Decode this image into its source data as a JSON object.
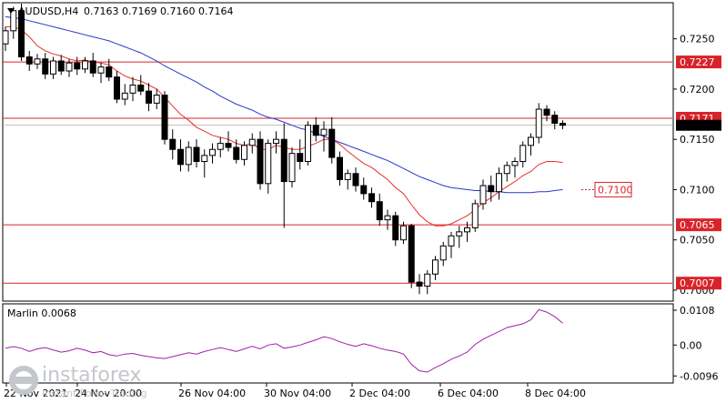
{
  "header": {
    "symbol": "AUDUSD,H4",
    "ohlc": "0.7163 0.7169 0.7160 0.7164"
  },
  "price_axis": {
    "ticks": [
      "0.7250",
      "0.7200",
      "0.7150",
      "0.7100",
      "0.7050",
      "0.7000"
    ],
    "level_labels": [
      "0.7227",
      "0.7171",
      "0.7065",
      "0.7007"
    ],
    "target_label": "0.7100",
    "current_price": 0.7164
  },
  "time_axis": {
    "labels": [
      "22 Nov 2021",
      "24 Nov 20:00",
      "26 Nov 04:00",
      "30 Nov 04:00",
      "2 Dec 04:00",
      "6 Dec 04:00",
      "8 Dec 04:00"
    ]
  },
  "indicator": {
    "name": "Marlin 0.0068",
    "ticks": [
      "0.0108",
      "0.00",
      "-0.0096"
    ]
  },
  "logo": {
    "brand": "instaforex",
    "tagline": "Instant Forex Trading"
  },
  "colors": {
    "candle_up": "#ffffff",
    "candle_down": "#000000",
    "ma_red": "#e8302a",
    "ma_blue": "#2d35c8",
    "level_line": "#d9232a",
    "marlin": "#a020a8",
    "grid": "#d9d9d9"
  },
  "chart_data": [
    {
      "type": "candlestick",
      "title": "AUDUSD,H4",
      "ylim": [
        0.699,
        0.7285
      ],
      "horizontal_levels": [
        0.7227,
        0.7171,
        0.7065,
        0.7007
      ],
      "target_level": 0.71,
      "ohlc": [
        [
          0.7245,
          0.7262,
          0.7238,
          0.7258
        ],
        [
          0.7258,
          0.7282,
          0.725,
          0.7278
        ],
        [
          0.7278,
          0.7285,
          0.7228,
          0.7232
        ],
        [
          0.7232,
          0.7238,
          0.7218,
          0.7225
        ],
        [
          0.7225,
          0.7235,
          0.722,
          0.723
        ],
        [
          0.723,
          0.7236,
          0.721,
          0.7215
        ],
        [
          0.7215,
          0.7232,
          0.721,
          0.7228
        ],
        [
          0.7228,
          0.7234,
          0.7214,
          0.7218
        ],
        [
          0.7218,
          0.723,
          0.7212,
          0.7226
        ],
        [
          0.7226,
          0.7232,
          0.7214,
          0.722
        ],
        [
          0.722,
          0.7232,
          0.7216,
          0.7228
        ],
        [
          0.7228,
          0.7236,
          0.7212,
          0.7216
        ],
        [
          0.7216,
          0.7226,
          0.7206,
          0.7222
        ],
        [
          0.7222,
          0.723,
          0.7208,
          0.7212
        ],
        [
          0.7212,
          0.7218,
          0.7186,
          0.719
        ],
        [
          0.719,
          0.7205,
          0.7184,
          0.7196
        ],
        [
          0.7196,
          0.7212,
          0.7188,
          0.7204
        ],
        [
          0.7204,
          0.7214,
          0.7194,
          0.7198
        ],
        [
          0.7198,
          0.7206,
          0.7178,
          0.7186
        ],
        [
          0.7186,
          0.72,
          0.718,
          0.7194
        ],
        [
          0.7194,
          0.7198,
          0.7145,
          0.715
        ],
        [
          0.715,
          0.716,
          0.713,
          0.714
        ],
        [
          0.714,
          0.715,
          0.7118,
          0.7125
        ],
        [
          0.7125,
          0.7148,
          0.7118,
          0.7142
        ],
        [
          0.7142,
          0.715,
          0.7122,
          0.7128
        ],
        [
          0.7128,
          0.714,
          0.7112,
          0.7134
        ],
        [
          0.7134,
          0.7146,
          0.7126,
          0.714
        ],
        [
          0.714,
          0.7152,
          0.7132,
          0.7146
        ],
        [
          0.7146,
          0.7158,
          0.7138,
          0.7142
        ],
        [
          0.7142,
          0.715,
          0.7126,
          0.713
        ],
        [
          0.713,
          0.7148,
          0.7124,
          0.7144
        ],
        [
          0.7144,
          0.7156,
          0.7136,
          0.715
        ],
        [
          0.715,
          0.7158,
          0.71,
          0.7106
        ],
        [
          0.7106,
          0.715,
          0.7096,
          0.7146
        ],
        [
          0.7146,
          0.7158,
          0.7136,
          0.715
        ],
        [
          0.715,
          0.7166,
          0.7062,
          0.7108
        ],
        [
          0.7108,
          0.7142,
          0.7102,
          0.7136
        ],
        [
          0.7136,
          0.715,
          0.712,
          0.7128
        ],
        [
          0.7128,
          0.7168,
          0.7124,
          0.7164
        ],
        [
          0.7164,
          0.7172,
          0.7148,
          0.7154
        ],
        [
          0.7154,
          0.7168,
          0.7138,
          0.716
        ],
        [
          0.716,
          0.7172,
          0.7126,
          0.7132
        ],
        [
          0.7132,
          0.7138,
          0.7104,
          0.711
        ],
        [
          0.711,
          0.712,
          0.71,
          0.7116
        ],
        [
          0.7116,
          0.7122,
          0.7098,
          0.7104
        ],
        [
          0.7104,
          0.7112,
          0.709,
          0.7096
        ],
        [
          0.7096,
          0.7102,
          0.7082,
          0.7088
        ],
        [
          0.7088,
          0.7096,
          0.7064,
          0.707
        ],
        [
          0.707,
          0.708,
          0.706,
          0.7074
        ],
        [
          0.7074,
          0.7078,
          0.7044,
          0.705
        ],
        [
          0.705,
          0.7068,
          0.7046,
          0.7064
        ],
        [
          0.7064,
          0.7066,
          0.7002,
          0.7008
        ],
        [
          0.7008,
          0.7016,
          0.6996,
          0.7004
        ],
        [
          0.7004,
          0.702,
          0.6996,
          0.7016
        ],
        [
          0.7016,
          0.7034,
          0.701,
          0.703
        ],
        [
          0.703,
          0.7048,
          0.7024,
          0.7044
        ],
        [
          0.7044,
          0.7058,
          0.7032,
          0.7054
        ],
        [
          0.7054,
          0.7064,
          0.7042,
          0.7058
        ],
        [
          0.7058,
          0.7068,
          0.7048,
          0.7062
        ],
        [
          0.7062,
          0.709,
          0.7058,
          0.7086
        ],
        [
          0.7086,
          0.711,
          0.708,
          0.7104
        ],
        [
          0.7104,
          0.7114,
          0.7088,
          0.7098
        ],
        [
          0.7098,
          0.7122,
          0.709,
          0.7116
        ],
        [
          0.7116,
          0.7128,
          0.7108,
          0.7124
        ],
        [
          0.7124,
          0.7132,
          0.7112,
          0.7128
        ],
        [
          0.7128,
          0.7148,
          0.7122,
          0.7144
        ],
        [
          0.7144,
          0.7156,
          0.7134,
          0.7152
        ],
        [
          0.7152,
          0.7186,
          0.7146,
          0.718
        ],
        [
          0.718,
          0.7184,
          0.7168,
          0.7174
        ],
        [
          0.7174,
          0.7178,
          0.716,
          0.7166
        ],
        [
          0.7166,
          0.7169,
          0.716,
          0.7164
        ]
      ],
      "series": [
        {
          "values": [
            0.7262,
            0.7262,
            0.7259,
            0.7252,
            0.7243,
            0.7238,
            0.7235,
            0.7233,
            0.723,
            0.7228,
            0.7229,
            0.7227,
            0.7226,
            0.7224,
            0.7218,
            0.7213,
            0.721,
            0.7208,
            0.7204,
            0.72,
            0.7192,
            0.7183,
            0.7175,
            0.7169,
            0.7162,
            0.7158,
            0.7154,
            0.7152,
            0.715,
            0.7146,
            0.7144,
            0.7146,
            0.714,
            0.714,
            0.7144,
            0.7142,
            0.714,
            0.714,
            0.7143,
            0.7146,
            0.715,
            0.715,
            0.7145,
            0.7138,
            0.7132,
            0.7126,
            0.7122,
            0.7116,
            0.711,
            0.7102,
            0.7096,
            0.7085,
            0.7075,
            0.7068,
            0.7064,
            0.7064,
            0.7066,
            0.707,
            0.7074,
            0.708,
            0.7087,
            0.7092,
            0.7098,
            0.7103,
            0.7108,
            0.7114,
            0.7118,
            0.7125,
            0.7128,
            0.7128,
            0.7127
          ]
        },
        {
          "values": [
            0.7272,
            0.7271,
            0.727,
            0.7268,
            0.7266,
            0.7264,
            0.7262,
            0.726,
            0.7258,
            0.7256,
            0.7254,
            0.7252,
            0.725,
            0.7248,
            0.7245,
            0.7242,
            0.7239,
            0.7236,
            0.7232,
            0.7228,
            0.7223,
            0.7219,
            0.7215,
            0.7211,
            0.7207,
            0.7202,
            0.7198,
            0.7193,
            0.7189,
            0.7185,
            0.7182,
            0.7179,
            0.7175,
            0.7172,
            0.717,
            0.7167,
            0.7164,
            0.7161,
            0.7159,
            0.7156,
            0.7153,
            0.715,
            0.7147,
            0.7144,
            0.7141,
            0.7138,
            0.7135,
            0.7132,
            0.7129,
            0.7125,
            0.7121,
            0.7117,
            0.7113,
            0.711,
            0.7107,
            0.7104,
            0.7102,
            0.7101,
            0.71,
            0.7099,
            0.7099,
            0.7098,
            0.7098,
            0.7097,
            0.7097,
            0.7097,
            0.7097,
            0.7098,
            0.7098,
            0.7099,
            0.71
          ]
        }
      ]
    },
    {
      "type": "line",
      "title": "Marlin 0.0068",
      "ylim": [
        -0.0115,
        0.0125
      ],
      "series": [
        {
          "values": [
            -0.001,
            -0.0005,
            -0.001,
            -0.002,
            -0.0012,
            -0.0008,
            -0.0015,
            -0.0022,
            -0.0018,
            -0.001,
            -0.0016,
            -0.0024,
            -0.002,
            -0.003,
            -0.0034,
            -0.0028,
            -0.0026,
            -0.0032,
            -0.0036,
            -0.004,
            -0.0042,
            -0.0036,
            -0.003,
            -0.0024,
            -0.0028,
            -0.002,
            -0.0014,
            -0.0008,
            -0.0014,
            -0.002,
            -0.0012,
            -0.0004,
            -0.0012,
            0.0,
            0.0004,
            -0.001,
            -0.0006,
            0.0,
            0.0008,
            0.0016,
            0.0026,
            0.002,
            0.001,
            0.0002,
            -0.0004,
            0.0004,
            -0.0002,
            -0.001,
            -0.0016,
            -0.002,
            -0.0028,
            -0.006,
            -0.008,
            -0.0084,
            -0.007,
            -0.0058,
            -0.0044,
            -0.0034,
            -0.0022,
            0.0002,
            0.0018,
            0.003,
            0.0042,
            0.0054,
            0.006,
            0.0066,
            0.0078,
            0.011,
            0.0102,
            0.0088,
            0.0068
          ]
        }
      ]
    }
  ]
}
